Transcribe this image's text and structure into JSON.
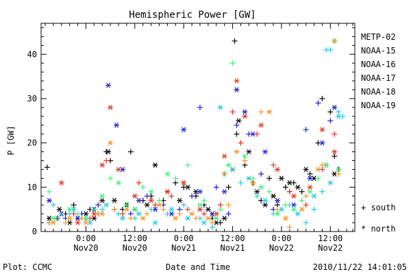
{
  "chart_data": {
    "type": "scatter",
    "title": "Hemispheric Power [GW]",
    "ylabel": "P [GW]",
    "xlabel": "Date and Time",
    "ylim": [
      0,
      47
    ],
    "xlim": [
      -6,
      13.5
    ],
    "x_unit": "hours relative to Nov20 00:00 (ticks in 12 h steps)",
    "yticks": [
      0,
      10,
      20,
      30,
      40
    ],
    "xticks": [
      {
        "x": 0,
        "time": "0:00",
        "date": "Nov20"
      },
      {
        "x": 12,
        "time": "12:00",
        "date": "Nov20"
      },
      {
        "x": 24,
        "time": "0:00",
        "date": "Nov21"
      },
      {
        "x": 36,
        "time": "12:00",
        "date": "Nov21"
      },
      {
        "x": 48,
        "time": "0:00",
        "date": "Nov22"
      },
      {
        "x": 60,
        "time": "12:00",
        "date": "Nov22"
      }
    ],
    "marker_legend": [
      {
        "symbol": "+",
        "label": "south"
      },
      {
        "symbol": "*",
        "label": "north"
      }
    ],
    "series": [
      {
        "name": "METP-02",
        "color": "#000000",
        "south": [
          [
            -9.5,
            14.5
          ],
          [
            -7,
            3
          ],
          [
            -5,
            4
          ],
          [
            -3,
            6
          ],
          [
            -1,
            3
          ],
          [
            1,
            5
          ],
          [
            3,
            4
          ],
          [
            5,
            18
          ],
          [
            6,
            16
          ],
          [
            9,
            5
          ],
          [
            11,
            18
          ],
          [
            14,
            7
          ],
          [
            16,
            8
          ],
          [
            19,
            7
          ],
          [
            22,
            11
          ],
          [
            24,
            10
          ],
          [
            27,
            8
          ],
          [
            29,
            6
          ],
          [
            31,
            3
          ],
          [
            33,
            2
          ],
          [
            35,
            10
          ],
          [
            36.5,
            43
          ],
          [
            37,
            22
          ],
          [
            39,
            15
          ],
          [
            41,
            11
          ],
          [
            43,
            7
          ],
          [
            45,
            12
          ],
          [
            47,
            6
          ],
          [
            49,
            10
          ],
          [
            51,
            11
          ],
          [
            53,
            9
          ],
          [
            55,
            13
          ],
          [
            57,
            20
          ],
          [
            58,
            30
          ],
          [
            60,
            27
          ],
          [
            61,
            17
          ],
          [
            62,
            14
          ]
        ],
        "north": [
          [
            -9,
            3
          ],
          [
            -6.5,
            5
          ],
          [
            -4,
            2
          ],
          [
            -2,
            3
          ],
          [
            0,
            4
          ],
          [
            2,
            3
          ],
          [
            4,
            7
          ],
          [
            5.5,
            18
          ],
          [
            7,
            7
          ],
          [
            10,
            6
          ],
          [
            12,
            5
          ],
          [
            15,
            6
          ],
          [
            17,
            15
          ],
          [
            20,
            9
          ],
          [
            23,
            7
          ],
          [
            25,
            10
          ],
          [
            27,
            9
          ],
          [
            30,
            5
          ],
          [
            32,
            2
          ],
          [
            34,
            3
          ],
          [
            36,
            14
          ],
          [
            37.5,
            25
          ],
          [
            40,
            18
          ],
          [
            42,
            9
          ],
          [
            44,
            6
          ],
          [
            46,
            8
          ],
          [
            48,
            12
          ],
          [
            50,
            11
          ],
          [
            52,
            10
          ],
          [
            54,
            14
          ],
          [
            56,
            12
          ],
          [
            59,
            15
          ],
          [
            61,
            13
          ]
        ]
      },
      {
        "name": "NOAA-15",
        "color": "#1a1acc",
        "south": [
          [
            -9,
            2
          ],
          [
            -5,
            3
          ],
          [
            -1,
            4
          ],
          [
            3,
            6
          ],
          [
            7,
            5
          ],
          [
            11,
            4
          ],
          [
            15,
            8
          ],
          [
            19,
            6
          ],
          [
            23,
            5
          ],
          [
            26,
            8
          ],
          [
            28,
            28
          ],
          [
            32,
            10
          ],
          [
            35,
            4
          ],
          [
            37,
            24
          ],
          [
            40,
            22
          ],
          [
            43,
            13
          ],
          [
            46,
            5
          ],
          [
            50,
            9
          ],
          [
            54,
            23
          ],
          [
            57,
            29
          ],
          [
            60,
            25
          ]
        ],
        "north": [
          [
            -9,
            7
          ],
          [
            -6,
            4
          ],
          [
            -2,
            3
          ],
          [
            2,
            5
          ],
          [
            5.5,
            33
          ],
          [
            7.5,
            24
          ],
          [
            9,
            14
          ],
          [
            13,
            7
          ],
          [
            17,
            5
          ],
          [
            21,
            4
          ],
          [
            24,
            23
          ],
          [
            28,
            9
          ],
          [
            31,
            4
          ],
          [
            34,
            9
          ],
          [
            37,
            32
          ],
          [
            39,
            27
          ],
          [
            41,
            22
          ],
          [
            44,
            18
          ],
          [
            47,
            7
          ],
          [
            51,
            6
          ],
          [
            55,
            12
          ],
          [
            58,
            20
          ],
          [
            61,
            28
          ]
        ]
      },
      {
        "name": "NOAA-16",
        "color": "#22c8e0",
        "south": [
          [
            -8,
            6
          ],
          [
            -4,
            4
          ],
          [
            0,
            3
          ],
          [
            4,
            5
          ],
          [
            8,
            4
          ],
          [
            12,
            3
          ],
          [
            16,
            5
          ],
          [
            20,
            4
          ],
          [
            24,
            6
          ],
          [
            28,
            3
          ],
          [
            31,
            1
          ],
          [
            34,
            13
          ],
          [
            38,
            11
          ],
          [
            42,
            8
          ],
          [
            46,
            4
          ],
          [
            50,
            6
          ],
          [
            54,
            2
          ],
          [
            56,
            5
          ],
          [
            58,
            9
          ],
          [
            59,
            41
          ],
          [
            60,
            41
          ],
          [
            62,
            27
          ],
          [
            63,
            26
          ]
        ],
        "north": [
          [
            -7,
            3
          ],
          [
            -3,
            5
          ],
          [
            1,
            2
          ],
          [
            5,
            6
          ],
          [
            9,
            3
          ],
          [
            13,
            4
          ],
          [
            17,
            2
          ],
          [
            21,
            5
          ],
          [
            25,
            3
          ],
          [
            29,
            2
          ],
          [
            33,
            28
          ],
          [
            36,
            14
          ],
          [
            40,
            12
          ],
          [
            44,
            7
          ],
          [
            48,
            5
          ],
          [
            52,
            4
          ],
          [
            56,
            8
          ],
          [
            60,
            11
          ],
          [
            62,
            26
          ]
        ]
      },
      {
        "name": "NOAA-17",
        "color": "#3cf07a",
        "south": [
          [
            -9,
            9
          ],
          [
            -6,
            4
          ],
          [
            -2,
            4
          ],
          [
            2,
            5
          ],
          [
            6,
            12
          ],
          [
            10,
            6
          ],
          [
            14,
            10
          ],
          [
            18,
            7
          ],
          [
            22,
            12
          ],
          [
            25,
            15
          ],
          [
            29,
            7
          ],
          [
            33,
            5
          ],
          [
            36,
            38
          ],
          [
            38,
            20
          ],
          [
            41,
            12
          ],
          [
            45,
            9
          ],
          [
            49,
            6
          ],
          [
            53,
            7
          ],
          [
            57,
            12
          ],
          [
            61,
            43
          ]
        ],
        "north": [
          [
            -8,
            3
          ],
          [
            -4,
            5
          ],
          [
            0,
            3
          ],
          [
            4,
            8
          ],
          [
            8,
            11
          ],
          [
            12,
            5
          ],
          [
            16,
            9
          ],
          [
            20,
            13
          ],
          [
            24,
            11
          ],
          [
            28,
            6
          ],
          [
            32,
            3
          ],
          [
            35,
            15
          ],
          [
            39,
            17
          ],
          [
            43,
            10
          ],
          [
            47,
            4
          ],
          [
            51,
            5
          ],
          [
            55,
            9
          ],
          [
            59,
            15
          ],
          [
            62,
            14
          ]
        ]
      },
      {
        "name": "NOAA-18",
        "color": "#f0961e",
        "south": [
          [
            -9,
            2
          ],
          [
            -5,
            2
          ],
          [
            -1,
            3
          ],
          [
            3,
            4
          ],
          [
            7,
            5
          ],
          [
            11,
            3
          ],
          [
            15,
            4
          ],
          [
            19,
            5
          ],
          [
            23,
            4
          ],
          [
            27,
            3
          ],
          [
            31,
            2
          ],
          [
            35,
            6
          ],
          [
            39,
            16
          ],
          [
            43,
            27
          ],
          [
            47,
            5
          ],
          [
            50,
            1
          ],
          [
            54,
            8
          ],
          [
            58,
            15
          ],
          [
            62,
            13
          ]
        ],
        "north": [
          [
            -8,
            2
          ],
          [
            -4,
            3
          ],
          [
            0,
            2
          ],
          [
            4,
            4
          ],
          [
            6,
            20
          ],
          [
            10,
            5
          ],
          [
            14,
            3
          ],
          [
            18,
            6
          ],
          [
            22,
            3
          ],
          [
            26,
            4
          ],
          [
            30,
            3
          ],
          [
            34,
            13
          ],
          [
            37,
            18
          ],
          [
            41,
            11
          ],
          [
            45,
            27
          ],
          [
            49,
            3
          ],
          [
            53,
            5
          ],
          [
            57,
            14
          ],
          [
            61,
            43
          ]
        ]
      },
      {
        "name": "NOAA-19",
        "color": "#e0321e",
        "south": [
          [
            -7,
            3
          ],
          [
            -3,
            4
          ],
          [
            1,
            3
          ],
          [
            5,
            16
          ],
          [
            9,
            4
          ],
          [
            13,
            11
          ],
          [
            17,
            6
          ],
          [
            21,
            8
          ],
          [
            25,
            5
          ],
          [
            29,
            4
          ],
          [
            33,
            6
          ],
          [
            36,
            27
          ],
          [
            38,
            20
          ],
          [
            42,
            22
          ],
          [
            46,
            15
          ],
          [
            50,
            9
          ],
          [
            54,
            6
          ],
          [
            58,
            14
          ],
          [
            61,
            22
          ]
        ],
        "north": [
          [
            -6,
            11
          ],
          [
            -2,
            2
          ],
          [
            2,
            4
          ],
          [
            4,
            15
          ],
          [
            6,
            28
          ],
          [
            8,
            14
          ],
          [
            12,
            8
          ],
          [
            16,
            7
          ],
          [
            20,
            9
          ],
          [
            24,
            11
          ],
          [
            28,
            5
          ],
          [
            32,
            4
          ],
          [
            34,
            17
          ],
          [
            37,
            34
          ],
          [
            39,
            26
          ],
          [
            43,
            24
          ],
          [
            47,
            14
          ],
          [
            51,
            8
          ],
          [
            55,
            10
          ],
          [
            58,
            23
          ],
          [
            61,
            18
          ]
        ]
      }
    ]
  },
  "footer": {
    "plot_credit": "Plot: CCMC",
    "timestamp": "2010/11/22 14:01:05"
  }
}
